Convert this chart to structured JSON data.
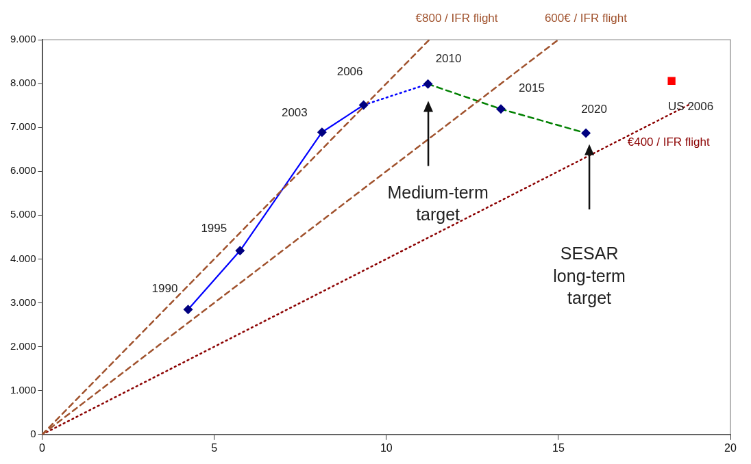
{
  "chart_data": {
    "type": "line",
    "xlim": [
      0,
      20
    ],
    "xticks": [
      0,
      5,
      10,
      15,
      20
    ],
    "ylim": [
      0,
      9000
    ],
    "yticks": [
      {
        "value": 0,
        "label": "0"
      },
      {
        "value": 1000,
        "label": "1.000"
      },
      {
        "value": 2000,
        "label": "2.000"
      },
      {
        "value": 3000,
        "label": "3.000"
      },
      {
        "value": 4000,
        "label": "4.000"
      },
      {
        "value": 5000,
        "label": "5.000"
      },
      {
        "value": 6000,
        "label": "6.000"
      },
      {
        "value": 7000,
        "label": "7.000"
      },
      {
        "value": 8000,
        "label": "8.000"
      },
      {
        "value": 9000,
        "label": "9.000"
      }
    ],
    "grid": false,
    "legend": false,
    "series": [
      {
        "name": "€800 / IFR flight",
        "color": "#a0522d",
        "line_style": "dashed",
        "marker": "none",
        "x": [
          0,
          11.25
        ],
        "values": [
          0,
          9000
        ]
      },
      {
        "name": "600€ / IFR flight",
        "color": "#a0522d",
        "line_style": "dashed",
        "marker": "none",
        "x": [
          0,
          15
        ],
        "values": [
          0,
          9000
        ]
      },
      {
        "name": "€400 / IFR flight",
        "color": "#8b0000",
        "line_style": "dotted",
        "marker": "none",
        "x": [
          0,
          18.8
        ],
        "values": [
          0,
          7520
        ]
      },
      {
        "color": "#0000ff",
        "line_style": "solid",
        "marker": "none",
        "x": [
          4.24,
          5.75,
          8.13,
          9.34
        ],
        "values": [
          2850,
          4190,
          6890,
          7510
        ]
      },
      {
        "color": "#0000ff",
        "line_style": "dotted",
        "marker": "none",
        "x": [
          9.34,
          11.21
        ],
        "values": [
          7510,
          7990
        ]
      },
      {
        "color": "#008000",
        "line_style": "dashed",
        "marker": "none",
        "x": [
          11.21,
          13.33,
          15.8
        ],
        "values": [
          7990,
          7420,
          6870
        ]
      },
      {
        "type": "scatter",
        "color": "#000080",
        "marker": "diamond",
        "x": [
          4.24,
          5.75,
          8.13,
          9.34,
          11.21,
          13.33,
          15.8
        ],
        "values": [
          2850,
          4190,
          6890,
          7510,
          7990,
          7420,
          6870
        ]
      },
      {
        "type": "scatter",
        "color": "#ff0000",
        "marker": "square",
        "x": [
          18.29
        ],
        "values": [
          8060
        ]
      }
    ],
    "annotations": [
      {
        "text": "1990",
        "x": 4.24,
        "y": 2850
      },
      {
        "text": "1995",
        "x": 5.75,
        "y": 4190
      },
      {
        "text": "2003",
        "x": 8.13,
        "y": 6890
      },
      {
        "text": "2006",
        "x": 9.34,
        "y": 7510
      },
      {
        "text": "2010",
        "x": 11.21,
        "y": 7990
      },
      {
        "text": "2015",
        "x": 13.33,
        "y": 7420
      },
      {
        "text": "2020",
        "x": 15.8,
        "y": 6870
      },
      {
        "text": "US 2006",
        "x": 18.29,
        "y": 8060
      },
      "Medium-term target",
      "SESAR long-term target"
    ]
  }
}
